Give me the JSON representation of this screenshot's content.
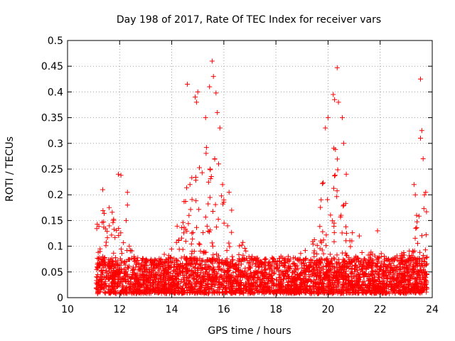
{
  "chart_data": {
    "type": "scatter",
    "title": "Day 198 of 2017, Rate Of TEC Index for receiver vars",
    "xlabel": "GPS time / hours",
    "ylabel": "ROTI / TECUs",
    "xlim": [
      10,
      24
    ],
    "ylim": [
      0,
      0.5
    ],
    "x_ticks": [
      "10",
      "12",
      "14",
      "16",
      "18",
      "20",
      "22",
      "24"
    ],
    "y_ticks": [
      "0",
      "0.05",
      "0.1",
      "0.15",
      "0.2",
      "0.25",
      "0.3",
      "0.35",
      "0.4",
      "0.45",
      "0.5"
    ],
    "grid": true,
    "marker": "+",
    "color": "#ff0000",
    "x_range_data": [
      11.1,
      23.8
    ],
    "envelope": [
      {
        "x": 11.1,
        "y": 0.14
      },
      {
        "x": 11.4,
        "y": 0.17
      },
      {
        "x": 11.7,
        "y": 0.16
      },
      {
        "x": 12.0,
        "y": 0.12
      },
      {
        "x": 12.5,
        "y": 0.08
      },
      {
        "x": 13.0,
        "y": 0.07
      },
      {
        "x": 13.5,
        "y": 0.07
      },
      {
        "x": 14.0,
        "y": 0.09
      },
      {
        "x": 14.4,
        "y": 0.17
      },
      {
        "x": 14.8,
        "y": 0.25
      },
      {
        "x": 15.2,
        "y": 0.3
      },
      {
        "x": 15.6,
        "y": 0.3
      },
      {
        "x": 16.0,
        "y": 0.2
      },
      {
        "x": 16.4,
        "y": 0.12
      },
      {
        "x": 17.0,
        "y": 0.08
      },
      {
        "x": 18.0,
        "y": 0.07
      },
      {
        "x": 19.0,
        "y": 0.08
      },
      {
        "x": 19.5,
        "y": 0.11
      },
      {
        "x": 19.8,
        "y": 0.22
      },
      {
        "x": 20.1,
        "y": 0.3
      },
      {
        "x": 20.4,
        "y": 0.28
      },
      {
        "x": 20.8,
        "y": 0.15
      },
      {
        "x": 21.3,
        "y": 0.08
      },
      {
        "x": 22.0,
        "y": 0.08
      },
      {
        "x": 22.5,
        "y": 0.07
      },
      {
        "x": 23.0,
        "y": 0.08
      },
      {
        "x": 23.4,
        "y": 0.14
      },
      {
        "x": 23.8,
        "y": 0.18
      }
    ],
    "outliers": [
      {
        "x": 11.35,
        "y": 0.21
      },
      {
        "x": 11.6,
        "y": 0.175
      },
      {
        "x": 11.95,
        "y": 0.24
      },
      {
        "x": 12.05,
        "y": 0.238
      },
      {
        "x": 12.3,
        "y": 0.205
      },
      {
        "x": 12.3,
        "y": 0.18
      },
      {
        "x": 12.25,
        "y": 0.15
      },
      {
        "x": 14.6,
        "y": 0.415
      },
      {
        "x": 14.7,
        "y": 0.22
      },
      {
        "x": 14.9,
        "y": 0.39
      },
      {
        "x": 14.95,
        "y": 0.38
      },
      {
        "x": 15.0,
        "y": 0.4
      },
      {
        "x": 15.3,
        "y": 0.35
      },
      {
        "x": 15.45,
        "y": 0.41
      },
      {
        "x": 15.55,
        "y": 0.46
      },
      {
        "x": 15.6,
        "y": 0.43
      },
      {
        "x": 15.7,
        "y": 0.398
      },
      {
        "x": 15.85,
        "y": 0.33
      },
      {
        "x": 15.75,
        "y": 0.36
      },
      {
        "x": 15.65,
        "y": 0.27
      },
      {
        "x": 15.8,
        "y": 0.26
      },
      {
        "x": 15.95,
        "y": 0.22
      },
      {
        "x": 16.2,
        "y": 0.205
      },
      {
        "x": 16.3,
        "y": 0.17
      },
      {
        "x": 16.0,
        "y": 0.19
      },
      {
        "x": 19.9,
        "y": 0.33
      },
      {
        "x": 20.0,
        "y": 0.35
      },
      {
        "x": 20.2,
        "y": 0.395
      },
      {
        "x": 20.25,
        "y": 0.385
      },
      {
        "x": 20.35,
        "y": 0.447
      },
      {
        "x": 20.4,
        "y": 0.38
      },
      {
        "x": 20.55,
        "y": 0.35
      },
      {
        "x": 20.6,
        "y": 0.3
      },
      {
        "x": 20.7,
        "y": 0.24
      },
      {
        "x": 20.6,
        "y": 0.18
      },
      {
        "x": 20.5,
        "y": 0.16
      },
      {
        "x": 21.2,
        "y": 0.12
      },
      {
        "x": 21.9,
        "y": 0.13
      },
      {
        "x": 23.55,
        "y": 0.425
      },
      {
        "x": 23.6,
        "y": 0.325
      },
      {
        "x": 23.55,
        "y": 0.31
      },
      {
        "x": 23.65,
        "y": 0.27
      },
      {
        "x": 23.75,
        "y": 0.205
      },
      {
        "x": 23.7,
        "y": 0.2
      },
      {
        "x": 23.3,
        "y": 0.22
      },
      {
        "x": 23.35,
        "y": 0.2
      },
      {
        "x": 23.4,
        "y": 0.16
      }
    ]
  }
}
